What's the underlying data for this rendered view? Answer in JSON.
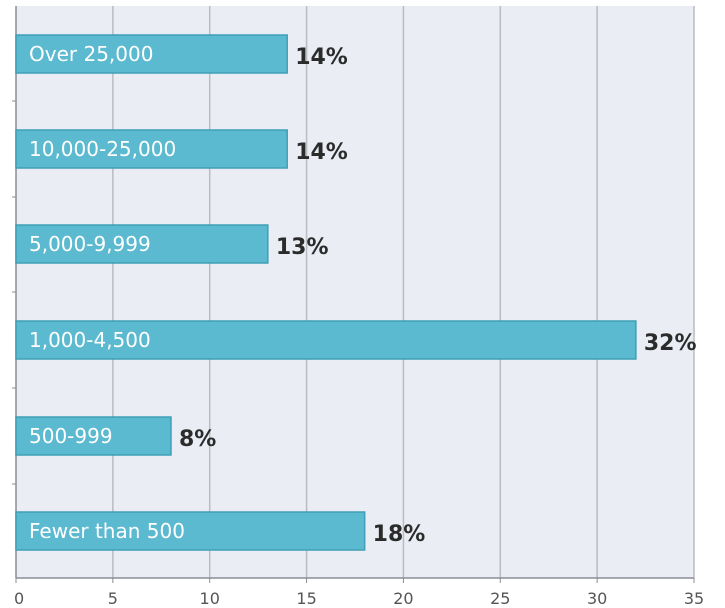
{
  "colors": {
    "plot_background": "#eaeef4",
    "bar_fill": "#5bb9d0",
    "bar_stroke": "#3f9fb8",
    "grid": "#b9bcc0",
    "axis": "#8a8e94",
    "bar_text": "#ffffff",
    "value_text": "#2b2b2b",
    "tick_text": "#555555"
  },
  "chart_data": {
    "type": "bar",
    "orientation": "horizontal",
    "title": "",
    "xlabel": "",
    "ylabel": "",
    "categories": [
      "Over 25,000",
      "10,000-25,000",
      "5,000-9,999",
      "1,000-4,500",
      "500-999",
      "Fewer than 500"
    ],
    "values": [
      14,
      14,
      13,
      32,
      8,
      18
    ],
    "value_labels": [
      "14%",
      "14%",
      "13%",
      "32%",
      "8%",
      "18%"
    ],
    "xlim": [
      0,
      35
    ],
    "x_ticks": [
      0,
      5,
      10,
      15,
      20,
      25,
      30,
      35
    ],
    "x_tick_labels": [
      "0",
      "5",
      "10",
      "15",
      "20",
      "25",
      "30",
      "35"
    ],
    "grid": true
  }
}
